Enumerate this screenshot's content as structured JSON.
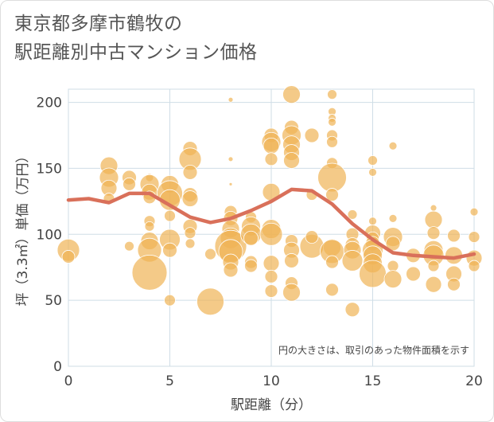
{
  "chart_data": {
    "type": "scatter",
    "title": [
      "東京都多摩市鶴牧の",
      "駅距離別中古マンション価格"
    ],
    "xlabel": "駅距離（分）",
    "ylabel": "坪（3.3㎡）単価（万円）",
    "xlim": [
      0,
      20
    ],
    "ylim": [
      0,
      210
    ],
    "xticks": [
      "0",
      "5",
      "10",
      "15",
      "20"
    ],
    "yticks": [
      "0",
      "50",
      "100",
      "150",
      "200"
    ],
    "grid": true,
    "note": "円の大きさは、取引のあった物件面積を示す",
    "colors": {
      "bubble": "#f0b456",
      "line": "#d9705a",
      "grid": "#cfdde6"
    },
    "series": [
      {
        "kind": "bubble",
        "points": [
          {
            "x": 0,
            "y": 88,
            "s": 14
          },
          {
            "x": 0,
            "y": 83,
            "s": 8
          },
          {
            "x": 2,
            "y": 152,
            "s": 11
          },
          {
            "x": 2,
            "y": 143,
            "s": 12
          },
          {
            "x": 2,
            "y": 135,
            "s": 10
          },
          {
            "x": 2,
            "y": 127,
            "s": 7
          },
          {
            "x": 3,
            "y": 143,
            "s": 9
          },
          {
            "x": 3,
            "y": 138,
            "s": 8
          },
          {
            "x": 3,
            "y": 91,
            "s": 6
          },
          {
            "x": 4,
            "y": 143,
            "s": 5
          },
          {
            "x": 4,
            "y": 138,
            "s": 12
          },
          {
            "x": 4,
            "y": 132,
            "s": 10
          },
          {
            "x": 4,
            "y": 128,
            "s": 8
          },
          {
            "x": 4,
            "y": 110,
            "s": 7
          },
          {
            "x": 4,
            "y": 106,
            "s": 6
          },
          {
            "x": 4,
            "y": 95,
            "s": 11
          },
          {
            "x": 4,
            "y": 88,
            "s": 15
          },
          {
            "x": 4,
            "y": 71,
            "s": 22
          },
          {
            "x": 5,
            "y": 138,
            "s": 11
          },
          {
            "x": 5,
            "y": 131,
            "s": 16
          },
          {
            "x": 5,
            "y": 126,
            "s": 13
          },
          {
            "x": 5,
            "y": 114,
            "s": 7
          },
          {
            "x": 5,
            "y": 96,
            "s": 13
          },
          {
            "x": 5,
            "y": 88,
            "s": 9
          },
          {
            "x": 5,
            "y": 50,
            "s": 7
          },
          {
            "x": 6,
            "y": 165,
            "s": 9
          },
          {
            "x": 6,
            "y": 157,
            "s": 14
          },
          {
            "x": 6,
            "y": 147,
            "s": 9
          },
          {
            "x": 6,
            "y": 130,
            "s": 9
          },
          {
            "x": 6,
            "y": 127,
            "s": 10
          },
          {
            "x": 6,
            "y": 106,
            "s": 9
          },
          {
            "x": 6,
            "y": 101,
            "s": 7
          },
          {
            "x": 6,
            "y": 93,
            "s": 6
          },
          {
            "x": 7,
            "y": 85,
            "s": 7
          },
          {
            "x": 7,
            "y": 49,
            "s": 17
          },
          {
            "x": 8,
            "y": 202,
            "s": 3
          },
          {
            "x": 8,
            "y": 157,
            "s": 3
          },
          {
            "x": 8,
            "y": 138,
            "s": 2
          },
          {
            "x": 8,
            "y": 117,
            "s": 8
          },
          {
            "x": 8,
            "y": 112,
            "s": 9
          },
          {
            "x": 8,
            "y": 104,
            "s": 11
          },
          {
            "x": 8,
            "y": 97,
            "s": 13
          },
          {
            "x": 8,
            "y": 91,
            "s": 20
          },
          {
            "x": 8,
            "y": 87,
            "s": 15
          },
          {
            "x": 8,
            "y": 79,
            "s": 10
          },
          {
            "x": 8,
            "y": 73,
            "s": 9
          },
          {
            "x": 9,
            "y": 113,
            "s": 7
          },
          {
            "x": 9,
            "y": 106,
            "s": 12
          },
          {
            "x": 9,
            "y": 100,
            "s": 13
          },
          {
            "x": 9,
            "y": 97,
            "s": 9
          },
          {
            "x": 9,
            "y": 79,
            "s": 8
          },
          {
            "x": 9,
            "y": 76,
            "s": 8
          },
          {
            "x": 10,
            "y": 175,
            "s": 9
          },
          {
            "x": 10,
            "y": 170,
            "s": 12
          },
          {
            "x": 10,
            "y": 167,
            "s": 10
          },
          {
            "x": 10,
            "y": 157,
            "s": 8
          },
          {
            "x": 10,
            "y": 132,
            "s": 11
          },
          {
            "x": 10,
            "y": 104,
            "s": 12
          },
          {
            "x": 10,
            "y": 100,
            "s": 14
          },
          {
            "x": 10,
            "y": 78,
            "s": 10
          },
          {
            "x": 10,
            "y": 68,
            "s": 8
          },
          {
            "x": 10,
            "y": 57,
            "s": 8
          },
          {
            "x": 11,
            "y": 206,
            "s": 11
          },
          {
            "x": 11,
            "y": 181,
            "s": 9
          },
          {
            "x": 11,
            "y": 175,
            "s": 12
          },
          {
            "x": 11,
            "y": 168,
            "s": 11
          },
          {
            "x": 11,
            "y": 162,
            "s": 10
          },
          {
            "x": 11,
            "y": 156,
            "s": 10
          },
          {
            "x": 11,
            "y": 95,
            "s": 8
          },
          {
            "x": 11,
            "y": 88,
            "s": 10
          },
          {
            "x": 11,
            "y": 80,
            "s": 9
          },
          {
            "x": 11,
            "y": 63,
            "s": 8
          },
          {
            "x": 11,
            "y": 56,
            "s": 11
          },
          {
            "x": 12,
            "y": 175,
            "s": 9
          },
          {
            "x": 12,
            "y": 130,
            "s": 7
          },
          {
            "x": 12,
            "y": 91,
            "s": 15
          },
          {
            "x": 12,
            "y": 98,
            "s": 8
          },
          {
            "x": 13,
            "y": 206,
            "s": 6
          },
          {
            "x": 13,
            "y": 193,
            "s": 5
          },
          {
            "x": 13,
            "y": 188,
            "s": 5
          },
          {
            "x": 13,
            "y": 185,
            "s": 5
          },
          {
            "x": 13,
            "y": 175,
            "s": 7
          },
          {
            "x": 13,
            "y": 170,
            "s": 7
          },
          {
            "x": 13,
            "y": 154,
            "s": 7
          },
          {
            "x": 13,
            "y": 143,
            "s": 18
          },
          {
            "x": 13,
            "y": 130,
            "s": 8
          },
          {
            "x": 13,
            "y": 90,
            "s": 11
          },
          {
            "x": 13,
            "y": 87,
            "s": 15
          },
          {
            "x": 13,
            "y": 79,
            "s": 8
          },
          {
            "x": 13,
            "y": 58,
            "s": 8
          },
          {
            "x": 14,
            "y": 115,
            "s": 6
          },
          {
            "x": 14,
            "y": 100,
            "s": 8
          },
          {
            "x": 14,
            "y": 92,
            "s": 9
          },
          {
            "x": 14,
            "y": 88,
            "s": 11
          },
          {
            "x": 14,
            "y": 80,
            "s": 13
          },
          {
            "x": 14,
            "y": 43,
            "s": 9
          },
          {
            "x": 15,
            "y": 156,
            "s": 6
          },
          {
            "x": 15,
            "y": 147,
            "s": 5
          },
          {
            "x": 15,
            "y": 110,
            "s": 5
          },
          {
            "x": 15,
            "y": 101,
            "s": 10
          },
          {
            "x": 15,
            "y": 97,
            "s": 8
          },
          {
            "x": 15,
            "y": 93,
            "s": 9
          },
          {
            "x": 15,
            "y": 88,
            "s": 13
          },
          {
            "x": 15,
            "y": 84,
            "s": 12
          },
          {
            "x": 15,
            "y": 78,
            "s": 12
          },
          {
            "x": 15,
            "y": 70,
            "s": 17
          },
          {
            "x": 16,
            "y": 167,
            "s": 5
          },
          {
            "x": 16,
            "y": 112,
            "s": 5
          },
          {
            "x": 16,
            "y": 98,
            "s": 12
          },
          {
            "x": 16,
            "y": 93,
            "s": 9
          },
          {
            "x": 16,
            "y": 76,
            "s": 7
          },
          {
            "x": 16,
            "y": 66,
            "s": 11
          },
          {
            "x": 17,
            "y": 84,
            "s": 9
          },
          {
            "x": 17,
            "y": 70,
            "s": 9
          },
          {
            "x": 18,
            "y": 120,
            "s": 4
          },
          {
            "x": 18,
            "y": 111,
            "s": 11
          },
          {
            "x": 18,
            "y": 101,
            "s": 8
          },
          {
            "x": 18,
            "y": 88,
            "s": 12
          },
          {
            "x": 18,
            "y": 84,
            "s": 13
          },
          {
            "x": 18,
            "y": 76,
            "s": 7
          },
          {
            "x": 18,
            "y": 62,
            "s": 10
          },
          {
            "x": 19,
            "y": 99,
            "s": 8
          },
          {
            "x": 19,
            "y": 84,
            "s": 11
          },
          {
            "x": 19,
            "y": 70,
            "s": 10
          },
          {
            "x": 19,
            "y": 62,
            "s": 8
          },
          {
            "x": 20,
            "y": 117,
            "s": 5
          },
          {
            "x": 20,
            "y": 98,
            "s": 7
          },
          {
            "x": 20,
            "y": 82,
            "s": 10
          },
          {
            "x": 20,
            "y": 76,
            "s": 7
          }
        ]
      },
      {
        "kind": "line",
        "points": [
          {
            "x": 0,
            "y": 126
          },
          {
            "x": 1,
            "y": 127
          },
          {
            "x": 2,
            "y": 124
          },
          {
            "x": 3,
            "y": 131
          },
          {
            "x": 4,
            "y": 131
          },
          {
            "x": 5,
            "y": 122
          },
          {
            "x": 6,
            "y": 113
          },
          {
            "x": 7,
            "y": 109
          },
          {
            "x": 8,
            "y": 112
          },
          {
            "x": 9,
            "y": 118
          },
          {
            "x": 10,
            "y": 125
          },
          {
            "x": 11,
            "y": 134
          },
          {
            "x": 12,
            "y": 133
          },
          {
            "x": 13,
            "y": 123
          },
          {
            "x": 14,
            "y": 108
          },
          {
            "x": 15,
            "y": 96
          },
          {
            "x": 16,
            "y": 86
          },
          {
            "x": 17,
            "y": 84
          },
          {
            "x": 18,
            "y": 83
          },
          {
            "x": 19,
            "y": 82
          },
          {
            "x": 20,
            "y": 85
          }
        ]
      }
    ]
  }
}
